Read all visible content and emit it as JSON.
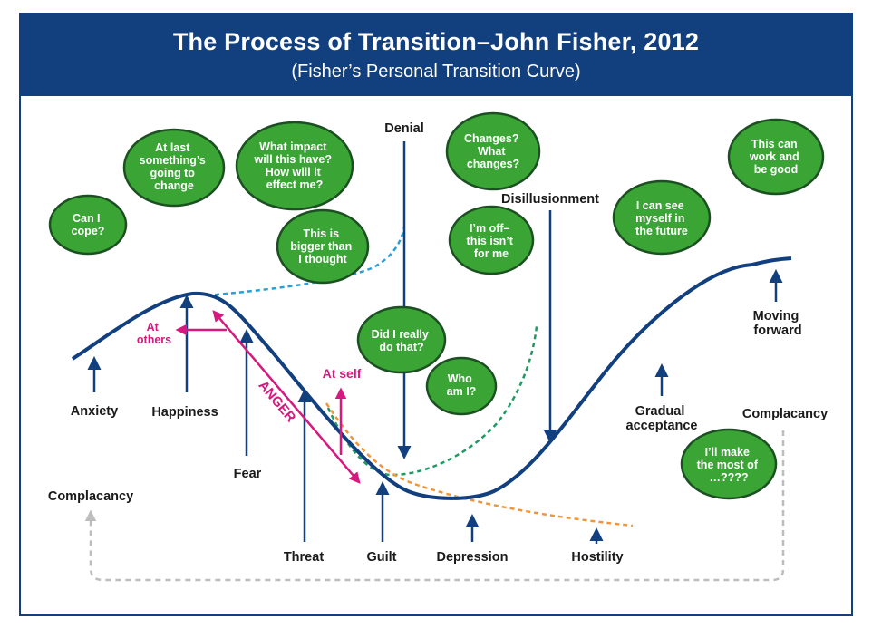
{
  "header": {
    "title": "The Process of Transition–John Fisher, 2012",
    "subtitle": "(Fisher’s Personal Transition Curve)"
  },
  "colors": {
    "header_bg": "#12407f",
    "curve": "#12407f",
    "bubble_fill": "#3aa535",
    "bubble_border": "#1c4f22",
    "anger": "#d6197f",
    "denial_branch": "#2a9fd6",
    "guilt_branch": "#1f9a63",
    "hostility_branch": "#f0963a",
    "complacancy_loop": "#bdbdbd"
  },
  "stages": {
    "anxiety": "Anxiety",
    "happiness": "Happiness",
    "fear": "Fear",
    "threat": "Threat",
    "guilt": "Guilt",
    "depression": "Depression",
    "hostility": "Hostility",
    "denial": "Denial",
    "disillusionment": "Disillusionment",
    "gradual_acceptance": [
      "Gradual",
      "acceptance"
    ],
    "moving_forward": [
      "Moving",
      "forward"
    ],
    "complacancy_left": "Complacancy",
    "complacancy_right": "Complacancy"
  },
  "anger": {
    "label": "ANGER",
    "at_others": [
      "At",
      "others"
    ],
    "at_self": "At self"
  },
  "bubbles": {
    "can_i_cope": [
      "Can I",
      "cope?"
    ],
    "at_last": [
      "At last",
      "something’s",
      "going to",
      "change"
    ],
    "what_impact": [
      "What impact",
      "will this have?",
      "How will it",
      "effect me?"
    ],
    "bigger": [
      "This is",
      "bigger than",
      "I thought"
    ],
    "changes": [
      "Changes?",
      "What",
      "changes?"
    ],
    "im_off": [
      "I’m off–",
      "this isn’t",
      "for me"
    ],
    "did_i_really": [
      "Did I really",
      "do that?"
    ],
    "who_am_i": [
      "Who",
      "am I?"
    ],
    "i_can_see": [
      "I can see",
      "myself in",
      "the future"
    ],
    "this_can_work": [
      "This can",
      "work and",
      "be good"
    ],
    "ill_make": [
      "I’ll make",
      "the most of",
      "…????"
    ]
  }
}
